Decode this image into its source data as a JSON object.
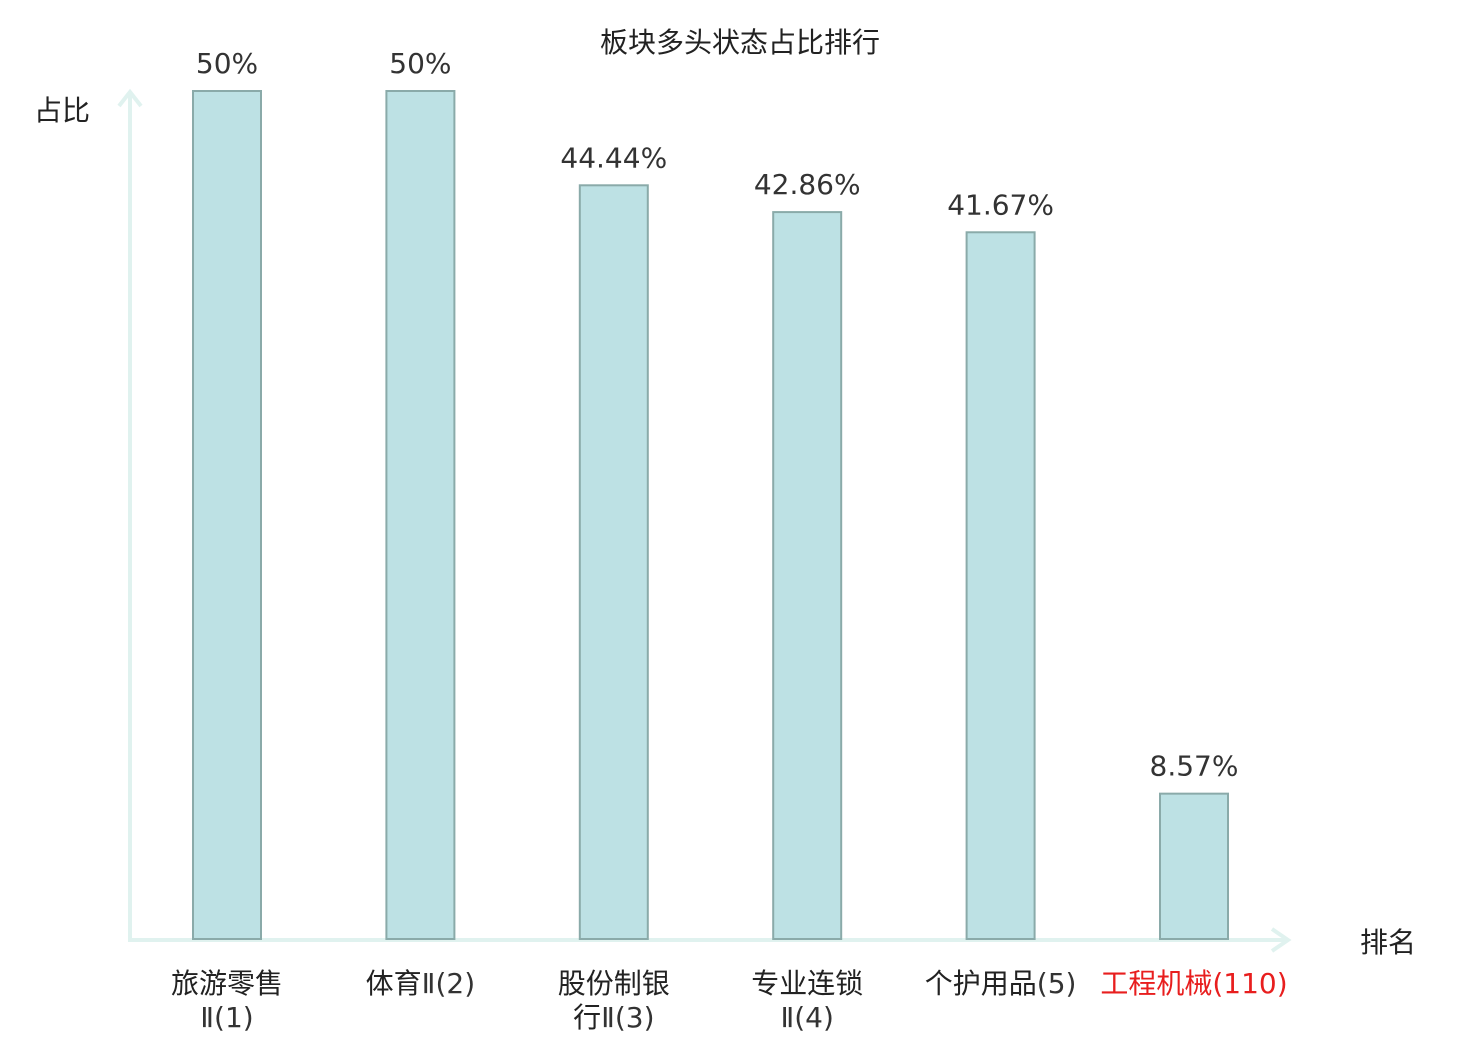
{
  "chart_data": {
    "type": "bar",
    "title": "板块多头状态占比排行",
    "ylabel": "占比",
    "xlabel": "排名",
    "ylim": [
      0,
      50
    ],
    "grid": false,
    "categories": [
      {
        "lines": [
          [
            {
              "t": "旅游零售"
            }
          ],
          [
            {
              "t": "Ⅱ(1)",
              "rank": true
            }
          ]
        ],
        "highlight": false
      },
      {
        "lines": [
          [
            {
              "t": "体育"
            },
            {
              "t": "Ⅱ(2)",
              "rank": true
            }
          ]
        ],
        "highlight": false
      },
      {
        "lines": [
          [
            {
              "t": "股份制银"
            }
          ],
          [
            {
              "t": "行"
            },
            {
              "t": "Ⅱ(3)",
              "rank": true
            }
          ]
        ],
        "highlight": false
      },
      {
        "lines": [
          [
            {
              "t": "专业连锁"
            }
          ],
          [
            {
              "t": "Ⅱ(4)",
              "rank": true
            }
          ]
        ],
        "highlight": false
      },
      {
        "lines": [
          [
            {
              "t": "个护用品"
            },
            {
              "t": "(5)",
              "rank": true
            }
          ]
        ],
        "highlight": false
      },
      {
        "lines": [
          [
            {
              "t": "工程机械"
            },
            {
              "t": "(110)",
              "rank": true
            }
          ]
        ],
        "highlight": true
      }
    ],
    "values": [
      50,
      50,
      44.44,
      42.86,
      41.67,
      8.57
    ],
    "value_labels": [
      "50%",
      "50%",
      "44.44%",
      "42.86%",
      "41.67%",
      "8.57%"
    ],
    "colors": {
      "bar_fill": "#bde1e4",
      "bar_stroke": "#8aaaa9",
      "axis": "#e0f2ef",
      "highlight": "#e81e1e"
    }
  }
}
